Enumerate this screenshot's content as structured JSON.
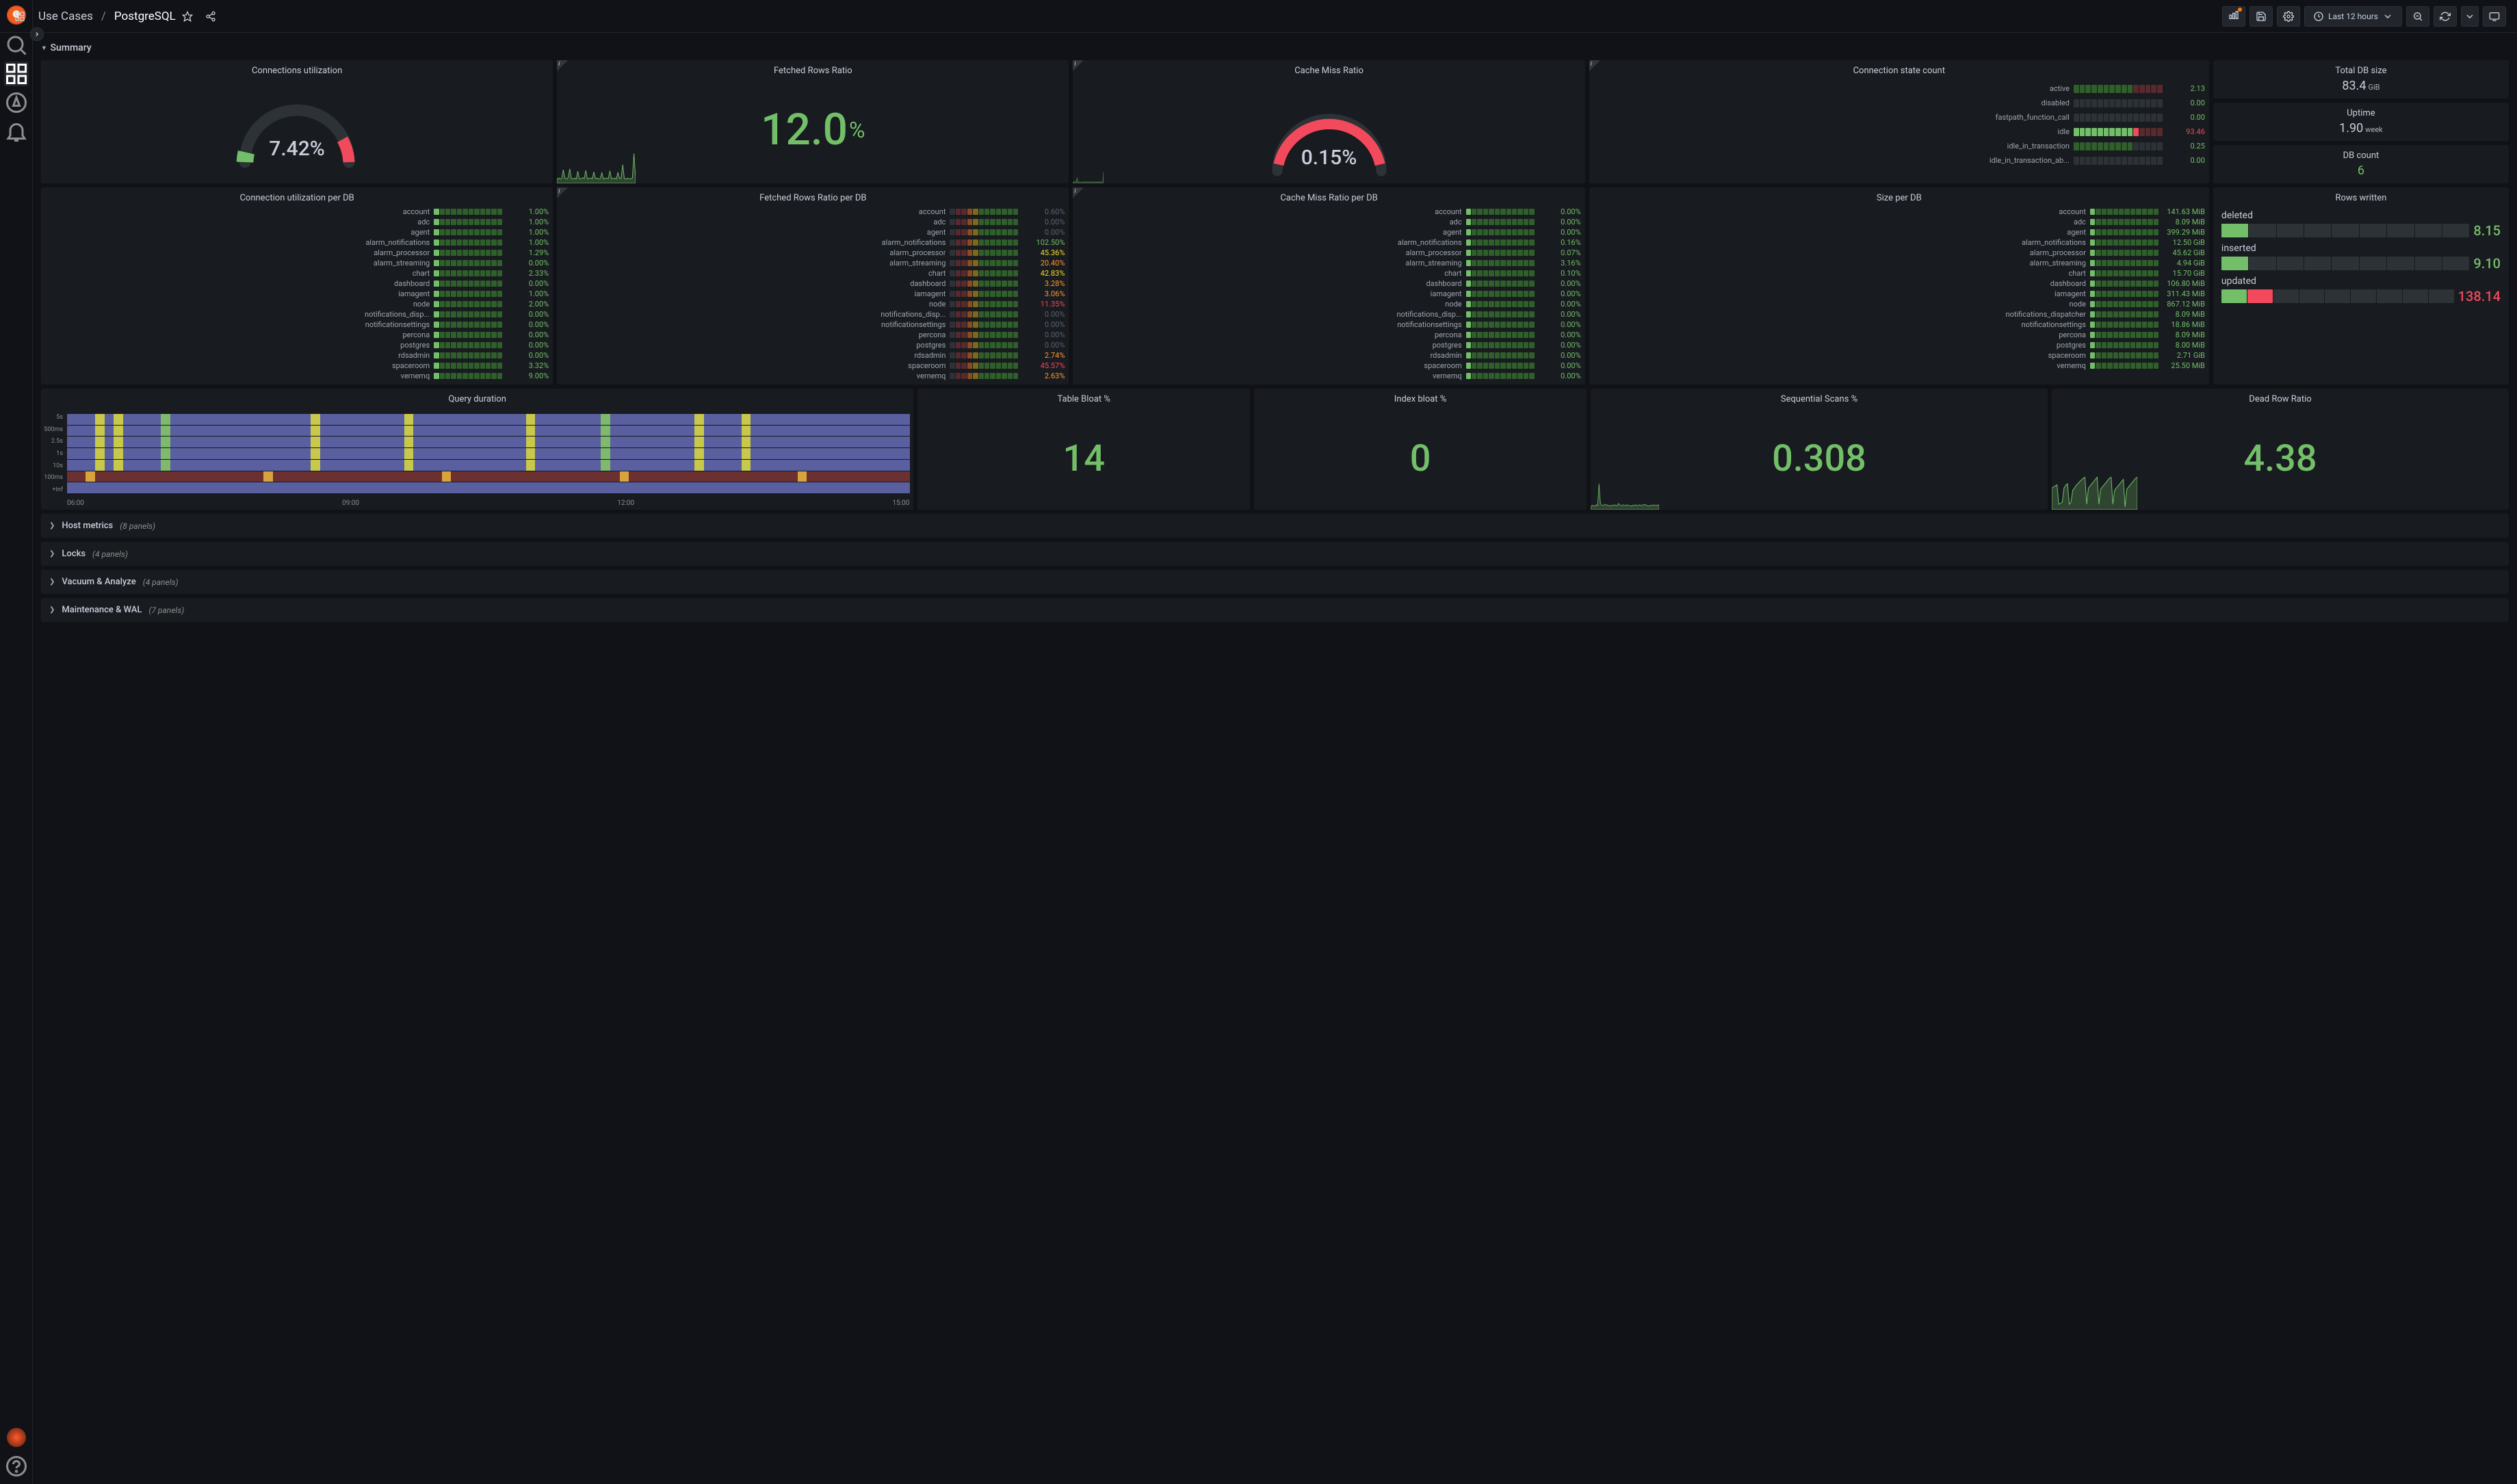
{
  "colors": {
    "bg": "#111217",
    "panel": "#181b1f",
    "text": "#ccccdc",
    "dim": "#5a6171",
    "green": "#73bf69",
    "red": "#f2495c",
    "orange": "#ff9830",
    "yellow": "#fade2a",
    "darkgreen": "#37872d",
    "darkred": "#58292d",
    "midgreen": "#56a64b"
  },
  "header": {
    "breadcrumb_folder": "Use Cases",
    "breadcrumb_name": "PostgreSQL",
    "time_range": "Last 12 hours"
  },
  "section": {
    "title": "Summary"
  },
  "gauges": {
    "conn_util": {
      "title": "Connections utilization",
      "value": "7.42%",
      "pct": 7.42,
      "green_to": 90,
      "color": "#73bf69"
    },
    "fetched": {
      "title": "Fetched Rows Ratio",
      "value": "12.0",
      "unit": "%",
      "color": "#73bf69",
      "spark": [
        8,
        11,
        9,
        10,
        28,
        11,
        9,
        12,
        30,
        10,
        9,
        11,
        9,
        25,
        10,
        9,
        12,
        10,
        27,
        9,
        10,
        11,
        9,
        24,
        10,
        11,
        9,
        10,
        22,
        9,
        10,
        11,
        10,
        26,
        9,
        10,
        11,
        9,
        23,
        10,
        11,
        39,
        10,
        9,
        11,
        9,
        10,
        11,
        62,
        10
      ]
    },
    "cache_miss": {
      "title": "Cache Miss Ratio",
      "value": "0.15%",
      "pct": 0.15,
      "arc_color": "#f2495c",
      "spark": [
        2,
        1,
        3,
        1,
        2,
        4,
        3,
        9,
        2,
        1,
        3,
        2,
        1,
        2,
        3,
        1,
        2,
        1,
        3,
        1,
        2,
        3,
        1,
        2,
        3,
        1,
        2,
        1,
        3,
        2,
        1,
        3,
        2,
        1,
        2,
        3,
        1,
        2,
        1,
        3,
        1,
        2,
        3,
        1,
        2,
        3,
        1,
        2,
        3,
        18
      ]
    }
  },
  "conn_state": {
    "title": "Connection state count",
    "rows": [
      {
        "label": "active",
        "value": "2.13",
        "color": "#73bf69",
        "cells": [
          "g",
          "g",
          "g",
          "g",
          "g",
          "g",
          "g",
          "g",
          "g",
          "g",
          "r",
          "r",
          "r",
          "r",
          "r"
        ]
      },
      {
        "label": "disabled",
        "value": "0.00",
        "color": "#73bf69",
        "cells": [
          "d",
          "d",
          "d",
          "d",
          "d",
          "d",
          "d",
          "d",
          "d",
          "d",
          "d",
          "d",
          "d",
          "d",
          "d"
        ]
      },
      {
        "label": "fastpath_function_call",
        "value": "0.00",
        "color": "#73bf69",
        "cells": [
          "d",
          "d",
          "d",
          "d",
          "d",
          "d",
          "d",
          "d",
          "d",
          "d",
          "d",
          "d",
          "d",
          "d",
          "d"
        ]
      },
      {
        "label": "idle",
        "value": "93.46",
        "color": "#f2495c",
        "cells": [
          "G",
          "G",
          "G",
          "G",
          "G",
          "G",
          "G",
          "G",
          "G",
          "G",
          "R",
          "r",
          "r",
          "r",
          "r"
        ]
      },
      {
        "label": "idle_in_transaction",
        "value": "0.25",
        "color": "#73bf69",
        "cells": [
          "g",
          "g",
          "g",
          "g",
          "g",
          "g",
          "g",
          "g",
          "g",
          "g",
          "d",
          "d",
          "d",
          "d",
          "d"
        ]
      },
      {
        "label": "idle_in_transaction_ab...",
        "value": "0.00",
        "color": "#73bf69",
        "cells": [
          "d",
          "d",
          "d",
          "d",
          "d",
          "d",
          "d",
          "d",
          "d",
          "d",
          "d",
          "d",
          "d",
          "d",
          "d"
        ]
      }
    ]
  },
  "right_col": [
    {
      "title": "Total DB size",
      "value": "83.4",
      "unit": "GiB",
      "color": "#ccccdc"
    },
    {
      "title": "Uptime",
      "value": "1.90",
      "unit": "week",
      "color": "#ccccdc"
    },
    {
      "title": "DB count",
      "value": "6",
      "unit": "",
      "color": "#73bf69"
    }
  ],
  "per_db": {
    "conn": {
      "title": "Connection utilization per DB",
      "rows": [
        {
          "l": "account",
          "v": "1.00%",
          "c": "#73bf69"
        },
        {
          "l": "adc",
          "v": "1.00%",
          "c": "#73bf69"
        },
        {
          "l": "agent",
          "v": "1.00%",
          "c": "#73bf69"
        },
        {
          "l": "alarm_notifications",
          "v": "1.00%",
          "c": "#73bf69"
        },
        {
          "l": "alarm_processor",
          "v": "1.29%",
          "c": "#73bf69"
        },
        {
          "l": "alarm_streaming",
          "v": "0.00%",
          "c": "#73bf69"
        },
        {
          "l": "chart",
          "v": "2.33%",
          "c": "#73bf69"
        },
        {
          "l": "dashboard",
          "v": "0.00%",
          "c": "#73bf69"
        },
        {
          "l": "iamagent",
          "v": "1.00%",
          "c": "#73bf69"
        },
        {
          "l": "node",
          "v": "2.00%",
          "c": "#73bf69"
        },
        {
          "l": "notifications_disp...",
          "v": "0.00%",
          "c": "#73bf69"
        },
        {
          "l": "notificationsettings",
          "v": "0.00%",
          "c": "#73bf69"
        },
        {
          "l": "percona",
          "v": "0.00%",
          "c": "#73bf69"
        },
        {
          "l": "postgres",
          "v": "0.00%",
          "c": "#73bf69"
        },
        {
          "l": "rdsadmin",
          "v": "0.00%",
          "c": "#73bf69"
        },
        {
          "l": "spaceroom",
          "v": "3.32%",
          "c": "#73bf69"
        },
        {
          "l": "vernemq",
          "v": "9.00%",
          "c": "#73bf69"
        }
      ]
    },
    "fetched": {
      "title": "Fetched Rows Ratio per DB",
      "rows": [
        {
          "l": "account",
          "v": "0.60%",
          "c": "#5a6171"
        },
        {
          "l": "adc",
          "v": "0.00%",
          "c": "#5a6171"
        },
        {
          "l": "agent",
          "v": "0.00%",
          "c": "#5a6171"
        },
        {
          "l": "alarm_notifications",
          "v": "102.50%",
          "c": "#73bf69"
        },
        {
          "l": "alarm_processor",
          "v": "45.36%",
          "c": "#fade2a"
        },
        {
          "l": "alarm_streaming",
          "v": "20.40%",
          "c": "#ff9830"
        },
        {
          "l": "chart",
          "v": "42.83%",
          "c": "#fade2a"
        },
        {
          "l": "dashboard",
          "v": "3.28%",
          "c": "#ff9830"
        },
        {
          "l": "iamagent",
          "v": "3.06%",
          "c": "#ff9830"
        },
        {
          "l": "node",
          "v": "11.35%",
          "c": "#f2495c"
        },
        {
          "l": "notifications_disp...",
          "v": "0.00%",
          "c": "#5a6171"
        },
        {
          "l": "notificationsettings",
          "v": "0.00%",
          "c": "#5a6171"
        },
        {
          "l": "percona",
          "v": "0.00%",
          "c": "#5a6171"
        },
        {
          "l": "postgres",
          "v": "0.00%",
          "c": "#5a6171"
        },
        {
          "l": "rdsadmin",
          "v": "2.74%",
          "c": "#ff9830"
        },
        {
          "l": "spaceroom",
          "v": "45.57%",
          "c": "#f2495c"
        },
        {
          "l": "vernemq",
          "v": "2.63%",
          "c": "#ff9830"
        }
      ]
    },
    "miss": {
      "title": "Cache Miss Ratio per DB",
      "rows": [
        {
          "l": "account",
          "v": "0.00%",
          "c": "#73bf69"
        },
        {
          "l": "adc",
          "v": "0.00%",
          "c": "#73bf69"
        },
        {
          "l": "agent",
          "v": "0.00%",
          "c": "#73bf69"
        },
        {
          "l": "alarm_notifications",
          "v": "0.16%",
          "c": "#73bf69"
        },
        {
          "l": "alarm_processor",
          "v": "0.07%",
          "c": "#73bf69"
        },
        {
          "l": "alarm_streaming",
          "v": "3.16%",
          "c": "#73bf69"
        },
        {
          "l": "chart",
          "v": "0.10%",
          "c": "#73bf69"
        },
        {
          "l": "dashboard",
          "v": "0.00%",
          "c": "#73bf69"
        },
        {
          "l": "iamagent",
          "v": "0.00%",
          "c": "#73bf69"
        },
        {
          "l": "node",
          "v": "0.00%",
          "c": "#73bf69"
        },
        {
          "l": "notifications_disp...",
          "v": "0.00%",
          "c": "#73bf69"
        },
        {
          "l": "notificationsettings",
          "v": "0.00%",
          "c": "#73bf69"
        },
        {
          "l": "percona",
          "v": "0.00%",
          "c": "#73bf69"
        },
        {
          "l": "postgres",
          "v": "0.00%",
          "c": "#73bf69"
        },
        {
          "l": "rdsadmin",
          "v": "0.00%",
          "c": "#73bf69"
        },
        {
          "l": "spaceroom",
          "v": "0.00%",
          "c": "#73bf69"
        },
        {
          "l": "vernemq",
          "v": "0.00%",
          "c": "#73bf69"
        }
      ]
    },
    "size": {
      "title": "Size per DB",
      "rows": [
        {
          "l": "account",
          "v": "141.63 MiB",
          "c": "#73bf69"
        },
        {
          "l": "adc",
          "v": "8.09 MiB",
          "c": "#73bf69"
        },
        {
          "l": "agent",
          "v": "399.29 MiB",
          "c": "#73bf69"
        },
        {
          "l": "alarm_notifications",
          "v": "12.50 GiB",
          "c": "#73bf69"
        },
        {
          "l": "alarm_processor",
          "v": "45.62 GiB",
          "c": "#73bf69"
        },
        {
          "l": "alarm_streaming",
          "v": "4.94 GiB",
          "c": "#73bf69"
        },
        {
          "l": "chart",
          "v": "15.70 GiB",
          "c": "#73bf69"
        },
        {
          "l": "dashboard",
          "v": "106.80 MiB",
          "c": "#73bf69"
        },
        {
          "l": "iamagent",
          "v": "311.43 MiB",
          "c": "#73bf69"
        },
        {
          "l": "node",
          "v": "867.12 MiB",
          "c": "#73bf69"
        },
        {
          "l": "notifications_dispatcher",
          "v": "8.09 MiB",
          "c": "#73bf69"
        },
        {
          "l": "notificationsettings",
          "v": "18.86 MiB",
          "c": "#73bf69"
        },
        {
          "l": "percona",
          "v": "8.09 MiB",
          "c": "#73bf69"
        },
        {
          "l": "postgres",
          "v": "8.00 MiB",
          "c": "#73bf69"
        },
        {
          "l": "rdsadmin",
          "v": "0.00%",
          "c": "#5a6171",
          "hidden": true
        },
        {
          "l": "spaceroom",
          "v": "2.71 GiB",
          "c": "#73bf69"
        },
        {
          "l": "vernemq",
          "v": "25.50 MiB",
          "c": "#73bf69"
        }
      ]
    }
  },
  "rows_written": {
    "title": "Rows written",
    "items": [
      {
        "label": "deleted",
        "value": "8.15",
        "color": "#73bf69",
        "cells": [
          "G",
          "d",
          "d",
          "d",
          "d",
          "d",
          "d",
          "d",
          "d"
        ]
      },
      {
        "label": "inserted",
        "value": "9.10",
        "color": "#73bf69",
        "cells": [
          "G",
          "d",
          "d",
          "d",
          "d",
          "d",
          "d",
          "d",
          "d"
        ]
      },
      {
        "label": "updated",
        "value": "138.14",
        "color": "#f2495c",
        "cells": [
          "G",
          "R",
          "d",
          "d",
          "d",
          "d",
          "d",
          "d",
          "d"
        ]
      }
    ]
  },
  "row3": {
    "query": {
      "title": "Query duration",
      "ylabels": [
        "5s",
        "500ms",
        "2.5s",
        "1s",
        "10s",
        "100ms",
        "+Inf"
      ],
      "xlabels": [
        "06:00",
        "09:00",
        "12:00",
        "15:00"
      ]
    },
    "table_bloat": {
      "title": "Table Bloat %",
      "value": "14",
      "color": "#73bf69"
    },
    "index_bloat": {
      "title": "Index bloat %",
      "value": "0",
      "color": "#73bf69"
    },
    "seq_scans": {
      "title": "Sequential Scans %",
      "value": "0.308",
      "color": "#73bf69",
      "spark": [
        5,
        10,
        9,
        8,
        11,
        9,
        58,
        14,
        10,
        9,
        12,
        10,
        11,
        9,
        8,
        10,
        9,
        11,
        10,
        9,
        14,
        10,
        9,
        11,
        10,
        9,
        11,
        10,
        9,
        8,
        10,
        9,
        11,
        10,
        9,
        11,
        10,
        9,
        12,
        11,
        10,
        9,
        8,
        10,
        9,
        11,
        10,
        9,
        11,
        10
      ]
    },
    "dead_row": {
      "title": "Dead Row Ratio",
      "value": "4.38",
      "color": "#73bf69",
      "spark": [
        40,
        42,
        44,
        46,
        10,
        12,
        14,
        40,
        45,
        48,
        10,
        14,
        36,
        40,
        45,
        48,
        52,
        55,
        58,
        60,
        10,
        40,
        44,
        48,
        52,
        56,
        60,
        10,
        38,
        42,
        46,
        50,
        54,
        58,
        60,
        10,
        36,
        40,
        44,
        48,
        52,
        56,
        5,
        38,
        42,
        46,
        50,
        54,
        58,
        60
      ]
    }
  },
  "collapsed": [
    {
      "name": "Host metrics",
      "count": "(8 panels)"
    },
    {
      "name": "Locks",
      "count": "(4 panels)"
    },
    {
      "name": "Vacuum & Analyze",
      "count": "(4 panels)"
    },
    {
      "name": "Maintenance & WAL",
      "count": "(7 panels)"
    }
  ]
}
